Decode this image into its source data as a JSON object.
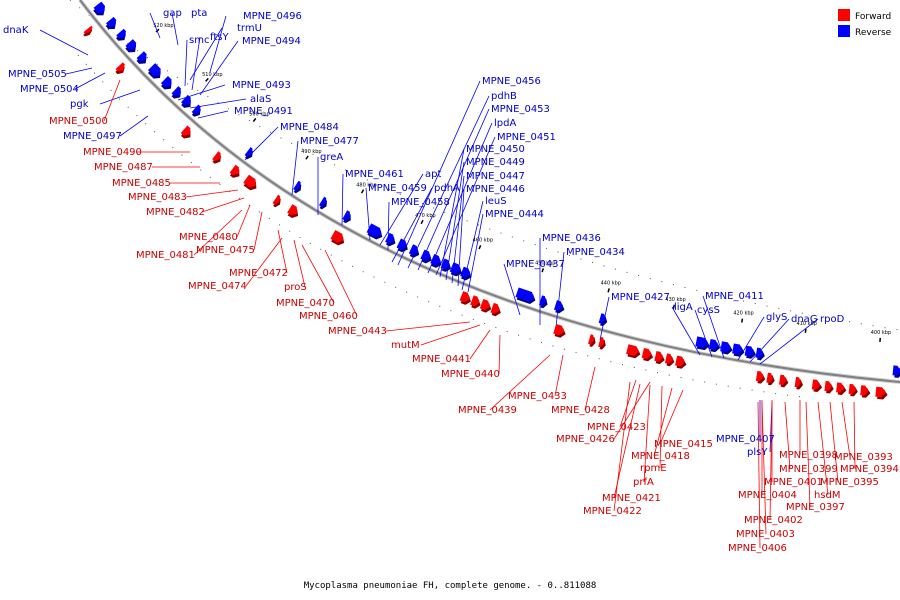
{
  "caption": "Mycoplasma pneumoniae FH, complete genome. - 0..811088",
  "legend": [
    {
      "label": "Forward",
      "color": "#ff0000"
    },
    {
      "label": "Reverse",
      "color": "#0000ff"
    }
  ],
  "colors": {
    "forward": "#ff0000",
    "reverse": "#0000ff",
    "backbone": "#808080",
    "leader_forward": "#cc0000",
    "leader_reverse": "#0000cc"
  },
  "ticks": [
    "520 kbp",
    "510 kbp",
    "500 kbp",
    "490 kbp",
    "480 kbp",
    "470 kbp",
    "460 kbp",
    "450 kbp",
    "440 kbp",
    "430 kbp",
    "420 kbp",
    "410 kbp",
    "400 kbp"
  ],
  "reverse_labels": [
    "dnaK",
    "gap",
    "pta",
    "MPNE_0496",
    "trmU",
    "smc",
    "ftsY",
    "MPNE_0494",
    "MPNE_0505",
    "MPNE_0504",
    "pgk",
    "MPNE_0493",
    "alaS",
    "MPNE_0491",
    "MPNE_0497",
    "MPNE_0484",
    "MPNE_0477",
    "greA",
    "MPNE_0461",
    "apt",
    "MPNE_0459",
    "pdhA",
    "MPNE_0458",
    "MPNE_0456",
    "pdhB",
    "MPNE_0453",
    "lpdA",
    "MPNE_0451",
    "MPNE_0450",
    "MPNE_0449",
    "MPNE_0447",
    "MPNE_0446",
    "leuS",
    "MPNE_0444",
    "MPNE_0436",
    "MPNE_0434",
    "MPNE_0437",
    "MPNE_0427",
    "ligA",
    "cysS",
    "MPNE_0411",
    "glyS",
    "dnaG",
    "rpoD",
    "MPNE_0407",
    "plsY"
  ],
  "forward_labels": [
    "MPNE_0500",
    "MPNE_0490",
    "MPNE_0487",
    "MPNE_0485",
    "MPNE_0483",
    "MPNE_0482",
    "MPNE_0480",
    "MPNE_0481",
    "MPNE_0475",
    "MPNE_0472",
    "MPNE_0474",
    "proS",
    "MPNE_0470",
    "MPNE_0460",
    "MPNE_0443",
    "mutM",
    "MPNE_0441",
    "MPNE_0440",
    "MPNE_0439",
    "MPNE_0433",
    "MPNE_0428",
    "MPNE_0423",
    "MPNE_0426",
    "MPNE_0415",
    "MPNE_0418",
    "rpmE",
    "prfA",
    "MPNE_0421",
    "MPNE_0422",
    "MPNE_0398",
    "MPNE_0393",
    "MPNE_0399",
    "MPNE_0394",
    "MPNE_0401",
    "MPNE_0395",
    "MPNE_0404",
    "hsdM",
    "MPNE_0397",
    "MPNE_0402",
    "MPNE_0403",
    "MPNE_0406"
  ]
}
